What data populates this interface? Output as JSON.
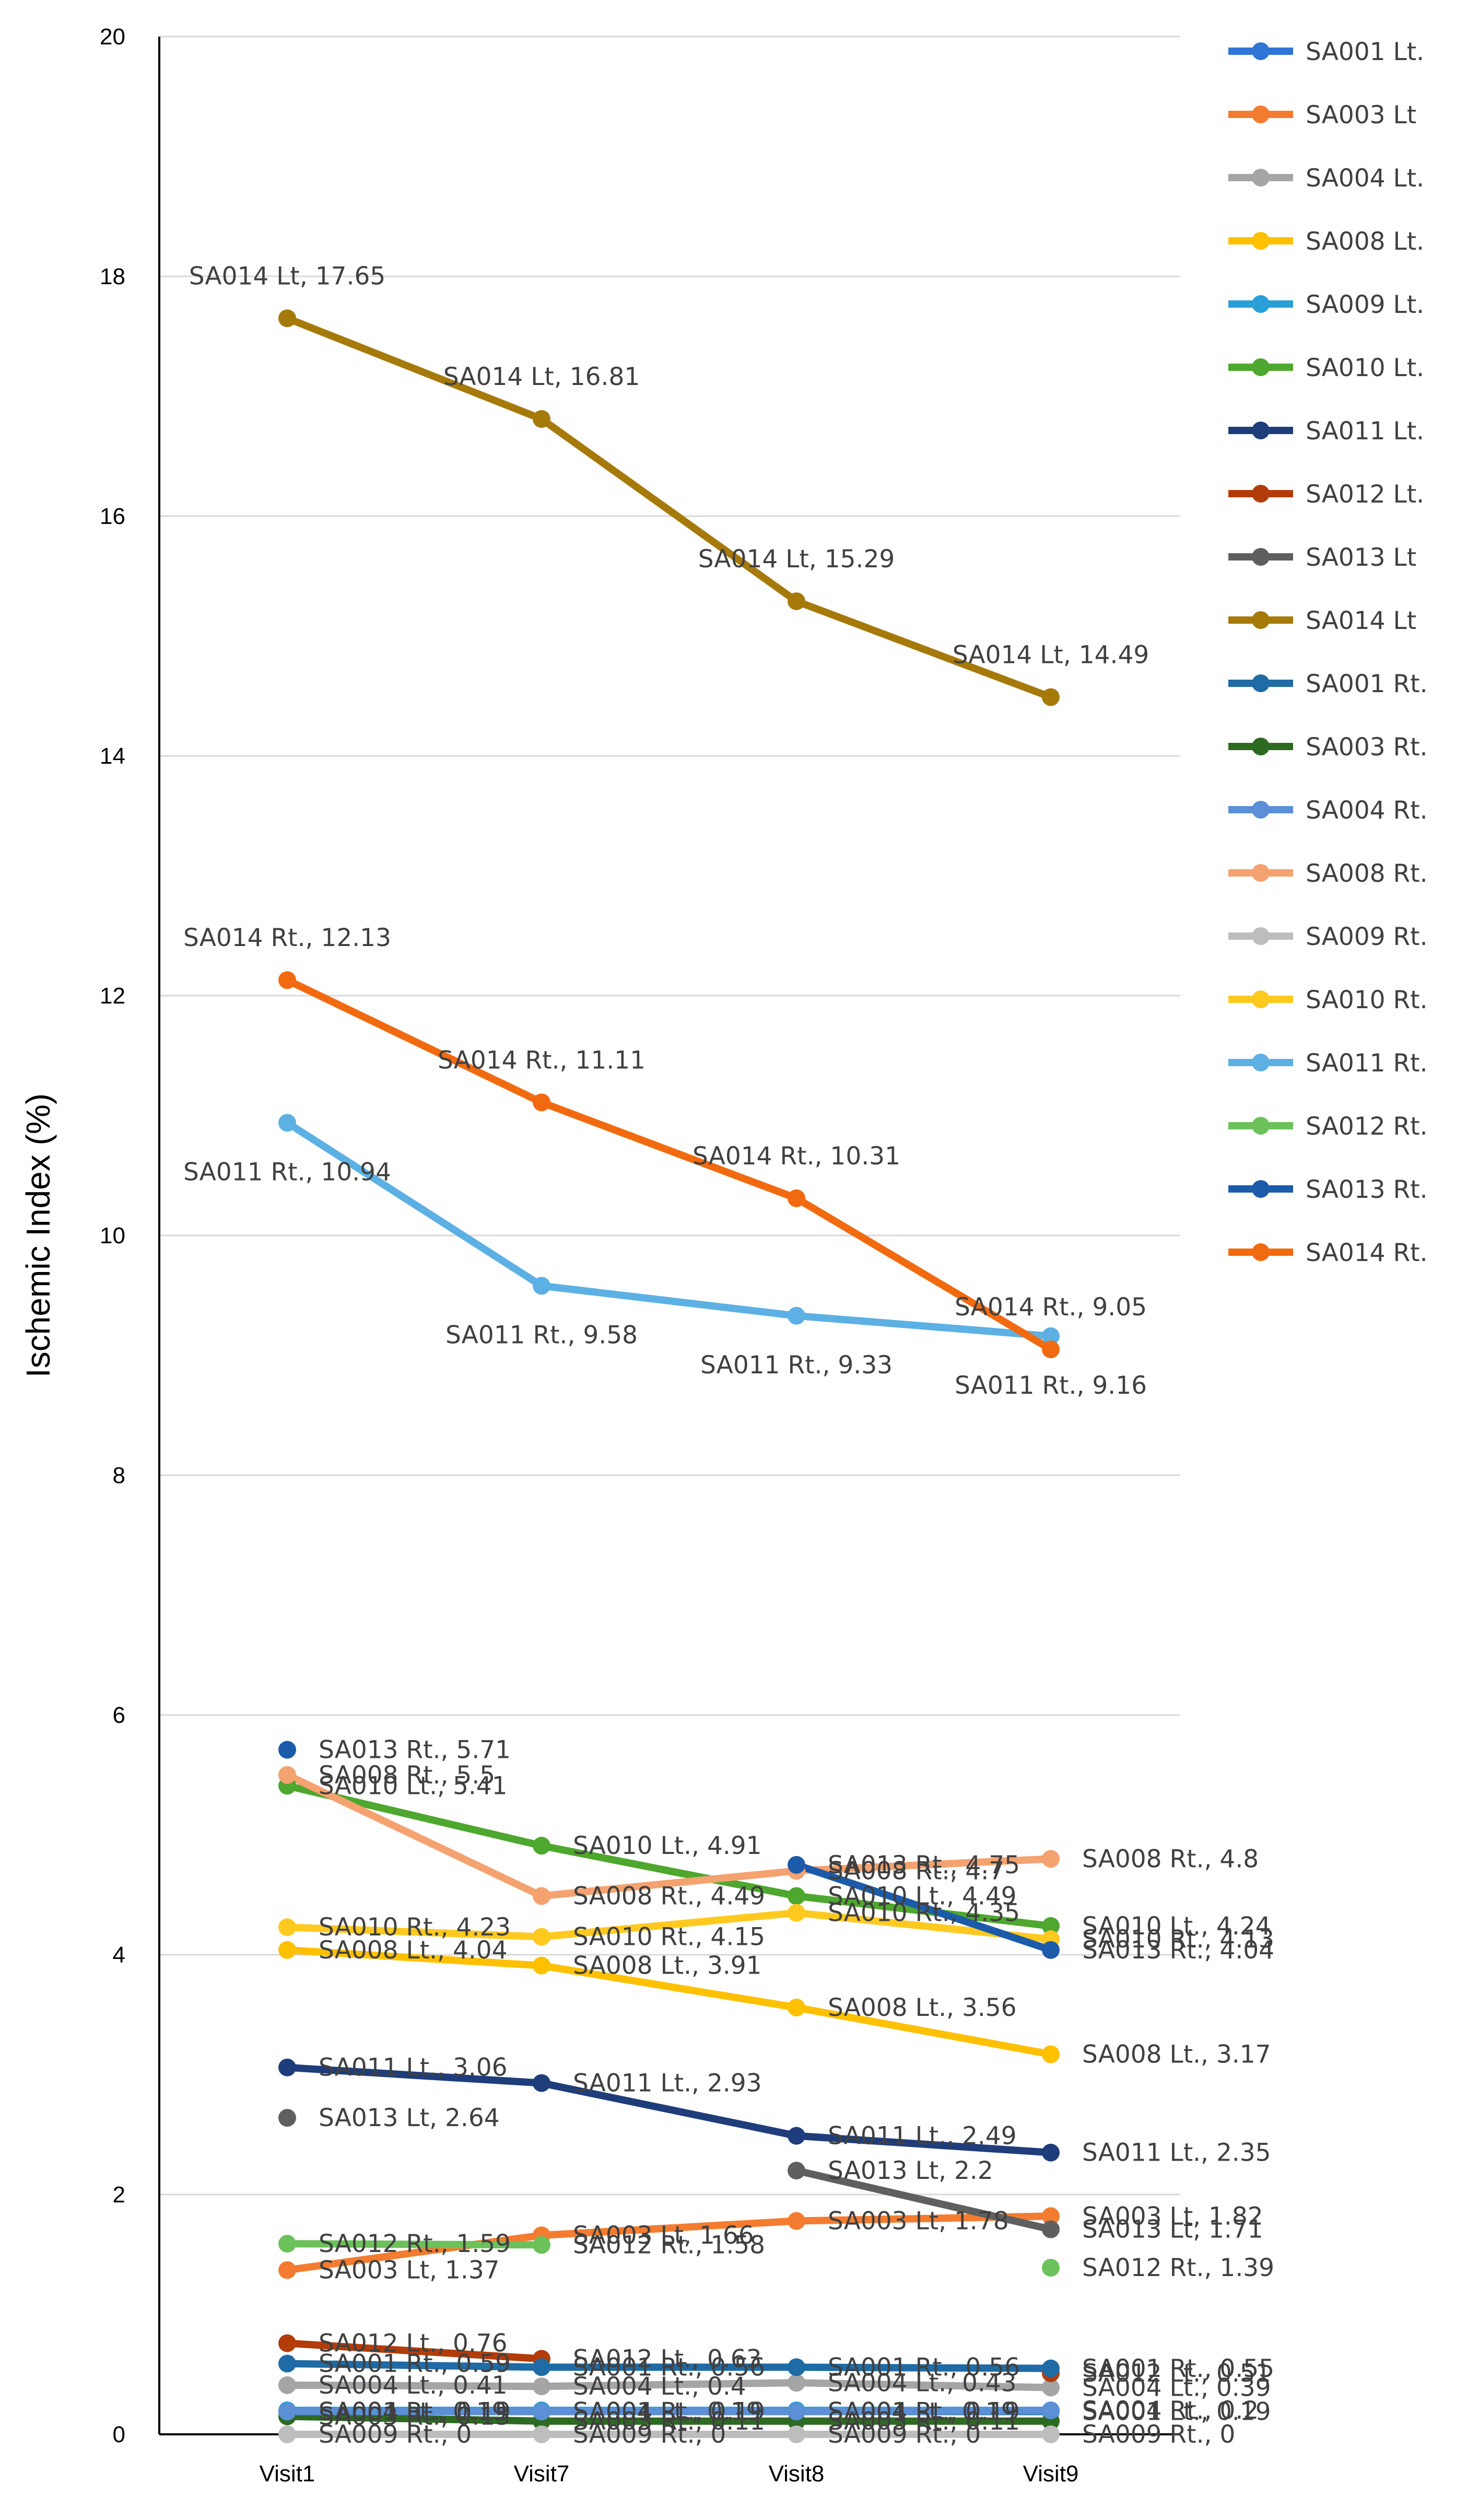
{
  "chart_data": {
    "type": "line",
    "title": "",
    "xlabel": "",
    "ylabel": "Ischemic Index (%)",
    "ylim": [
      0,
      20
    ],
    "yticks": [
      0,
      2,
      4,
      6,
      8,
      10,
      12,
      14,
      16,
      18,
      20
    ],
    "grid": true,
    "legend_position": "right",
    "categories": [
      "Visit1",
      "Visit7",
      "Visit8",
      "Visit9"
    ],
    "series": [
      {
        "name": "SA001 Lt.",
        "color": "#2E75D6",
        "values": [
          0.19,
          0.19,
          0.19,
          0.19
        ],
        "labels": [
          "SA001 Lt., 0.19",
          "SA001 Lt., 0.19",
          "SA001 Lt., 0.19",
          "SA001 Lt., 0.19"
        ]
      },
      {
        "name": "SA003 Lt",
        "color": "#F47C30",
        "values": [
          1.37,
          1.66,
          1.78,
          1.82
        ],
        "labels": [
          "SA003 Lt, 1.37",
          "SA003 Lt, 1.66",
          "SA003 Lt, 1.78",
          "SA003 Lt, 1.82"
        ]
      },
      {
        "name": "SA004 Lt.",
        "color": "#A5A5A5",
        "values": [
          0.41,
          0.4,
          0.43,
          0.39
        ],
        "labels": [
          "SA004 Lt., 0.41",
          "SA004 Lt., 0.4",
          "SA004 Lt., 0.43",
          "SA004 Lt., 0.39"
        ]
      },
      {
        "name": "SA008 Lt.",
        "color": "#FFC000",
        "values": [
          4.04,
          3.91,
          3.56,
          3.17
        ],
        "labels": [
          "SA008 Lt., 4.04",
          "SA008 Lt., 3.91",
          "SA008 Lt., 3.56",
          "SA008 Lt., 3.17"
        ]
      },
      {
        "name": "SA009 Lt.",
        "color": "#2A9FD8",
        "values": [
          0.2,
          0.2,
          0.2,
          0.2
        ],
        "labels": [
          "",
          "",
          "",
          ""
        ]
      },
      {
        "name": "SA010 Lt.",
        "color": "#4EA72E",
        "values": [
          5.41,
          4.91,
          4.49,
          4.24
        ],
        "labels": [
          "SA010 Lt., 5.41",
          "SA010 Lt., 4.91",
          "SA010 Lt., 4.49",
          "SA010 Lt., 4.24"
        ]
      },
      {
        "name": "SA011 Lt.",
        "color": "#1F3D7A",
        "values": [
          3.06,
          2.93,
          2.49,
          2.35
        ],
        "labels": [
          "SA011 Lt., 3.06",
          "SA011 Lt., 2.93",
          "SA011 Lt., 2.49",
          "SA011 Lt., 2.35"
        ]
      },
      {
        "name": "SA012 Lt.",
        "color": "#B23C0A",
        "values": [
          0.76,
          0.63,
          null,
          0.51
        ],
        "labels": [
          "SA012 Lt., 0.76",
          "SA012 Lt., 0.63",
          "",
          "SA012 Lt., 0.51"
        ]
      },
      {
        "name": "SA013 Lt",
        "color": "#5F5F5F",
        "values": [
          2.64,
          null,
          2.2,
          1.71
        ],
        "labels": [
          "SA013 Lt, 2.64",
          "",
          "SA013 Lt, 2.2",
          "SA013 Lt, 1.71"
        ]
      },
      {
        "name": "SA014 Lt",
        "color": "#A6790B",
        "values": [
          17.65,
          16.81,
          15.29,
          14.49
        ],
        "labels": [
          "SA014 Lt, 17.65",
          "SA014 Lt, 16.81",
          "SA014 Lt, 15.29",
          "SA014 Lt, 14.49"
        ]
      },
      {
        "name": "SA001 Rt.",
        "color": "#1F6BA5",
        "values": [
          0.59,
          0.56,
          0.56,
          0.55
        ],
        "labels": [
          "SA001 Rt., 0.59",
          "SA001 Rt., 0.56",
          "SA001 Rt., 0.56",
          "SA001 Rt., 0.55"
        ]
      },
      {
        "name": "SA003 Rt.",
        "color": "#2D6A22",
        "values": [
          0.15,
          0.11,
          0.11,
          0.11
        ],
        "labels": [
          "SA003 Rt., 0.15",
          "SA003 Rt., 0.11",
          "SA003 Rt., 0.11",
          ""
        ]
      },
      {
        "name": "SA004 Rt.",
        "color": "#5B8FD6",
        "values": [
          0.19,
          0.19,
          0.19,
          0.2
        ],
        "labels": [
          "SA004 Rt., 0.19",
          "SA004 Rt., 0.19",
          "SA004 Rt., 0.19",
          "SA004 Rt., 0.2"
        ]
      },
      {
        "name": "SA008 Rt.",
        "color": "#F4A270",
        "values": [
          5.5,
          4.49,
          4.7,
          4.8
        ],
        "labels": [
          "SA008 Rt., 5.5",
          "SA008 Rt., 4.49",
          "SA008 Rt., 4.7",
          "SA008 Rt., 4.8"
        ]
      },
      {
        "name": "SA009 Rt.",
        "color": "#BDBDBD",
        "values": [
          0,
          0,
          0,
          0
        ],
        "labels": [
          "SA009 Rt., 0",
          "SA009 Rt., 0",
          "SA009 Rt., 0",
          "SA009 Rt., 0"
        ]
      },
      {
        "name": "SA010 Rt.",
        "color": "#FFC91F",
        "values": [
          4.23,
          4.15,
          4.35,
          4.13
        ],
        "labels": [
          "SA010 Rt., 4.23",
          "SA010 Rt., 4.15",
          "SA010 Rt., 4.35",
          "SA010 Rt., 4.13"
        ]
      },
      {
        "name": "SA011 Rt.",
        "color": "#5CB0E4",
        "values": [
          10.94,
          9.58,
          9.33,
          9.16
        ],
        "labels": [
          "SA011 Rt., 10.94",
          "SA011 Rt., 9.58",
          "SA011 Rt., 9.33",
          "SA011 Rt., 9.16"
        ]
      },
      {
        "name": "SA012 Rt.",
        "color": "#6CC15A",
        "values": [
          1.59,
          1.58,
          null,
          1.39
        ],
        "labels": [
          "SA012 Rt., 1.59",
          "SA012 Rt., 1.58",
          "",
          "SA012 Rt., 1.39"
        ]
      },
      {
        "name": "SA013 Rt.",
        "color": "#1C5BAA",
        "values": [
          5.71,
          null,
          4.75,
          4.04
        ],
        "labels": [
          "SA013 Rt., 5.71",
          "",
          "SA013 Rt., 4.75",
          "SA013 Rt., 4.04"
        ]
      },
      {
        "name": "SA014 Rt.",
        "color": "#F26A10",
        "values": [
          12.13,
          11.11,
          10.31,
          9.05
        ],
        "labels": [
          "SA014 Rt., 12.13",
          "SA014 Rt., 11.11",
          "SA014 Rt., 10.31",
          "SA014 Rt., 9.05"
        ]
      }
    ]
  }
}
